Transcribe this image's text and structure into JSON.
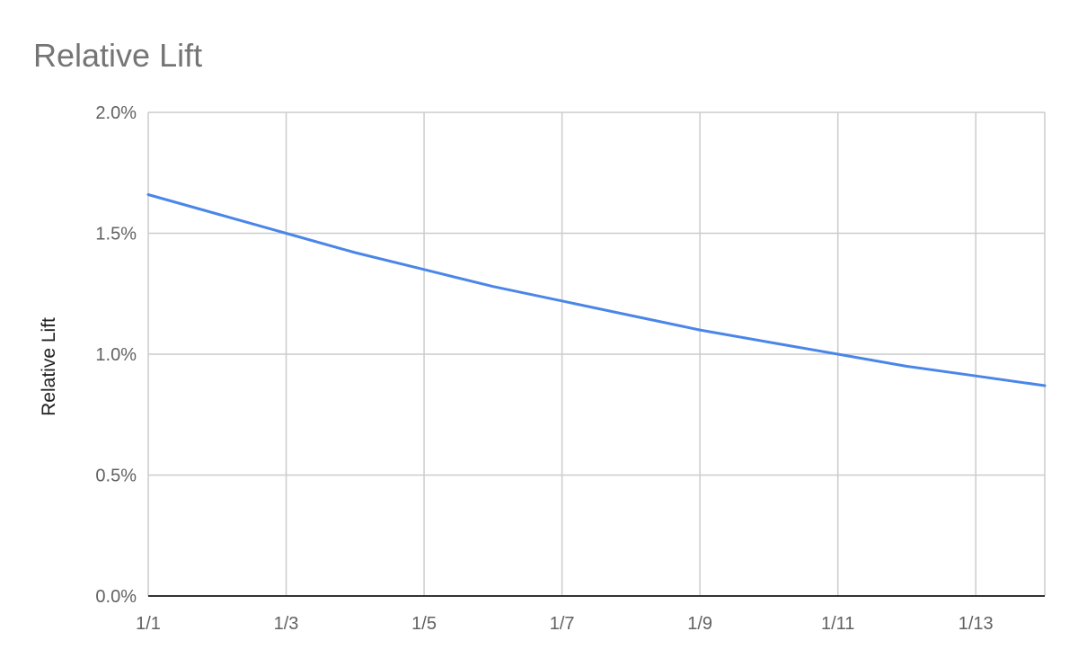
{
  "chart_data": {
    "type": "line",
    "title": "Relative Lift",
    "xlabel": "",
    "ylabel": "Relative Lift",
    "x_tick_labels": [
      "1/1",
      "1/3",
      "1/5",
      "1/7",
      "1/9",
      "1/11",
      "1/13"
    ],
    "y_tick_labels": [
      "0.0%",
      "0.5%",
      "1.0%",
      "1.5%",
      "2.0%"
    ],
    "ylim": [
      0,
      2.0
    ],
    "y_unit": "percent",
    "grid": true,
    "legend": "none",
    "series": [
      {
        "color": "#4a86e8",
        "x": [
          "1/1",
          "1/2",
          "1/3",
          "1/4",
          "1/5",
          "1/6",
          "1/7",
          "1/8",
          "1/9",
          "1/10",
          "1/11",
          "1/12",
          "1/13",
          "1/14"
        ],
        "values": [
          1.66,
          1.58,
          1.5,
          1.42,
          1.35,
          1.28,
          1.22,
          1.16,
          1.1,
          1.05,
          1.0,
          0.95,
          0.91,
          0.87
        ]
      }
    ]
  }
}
